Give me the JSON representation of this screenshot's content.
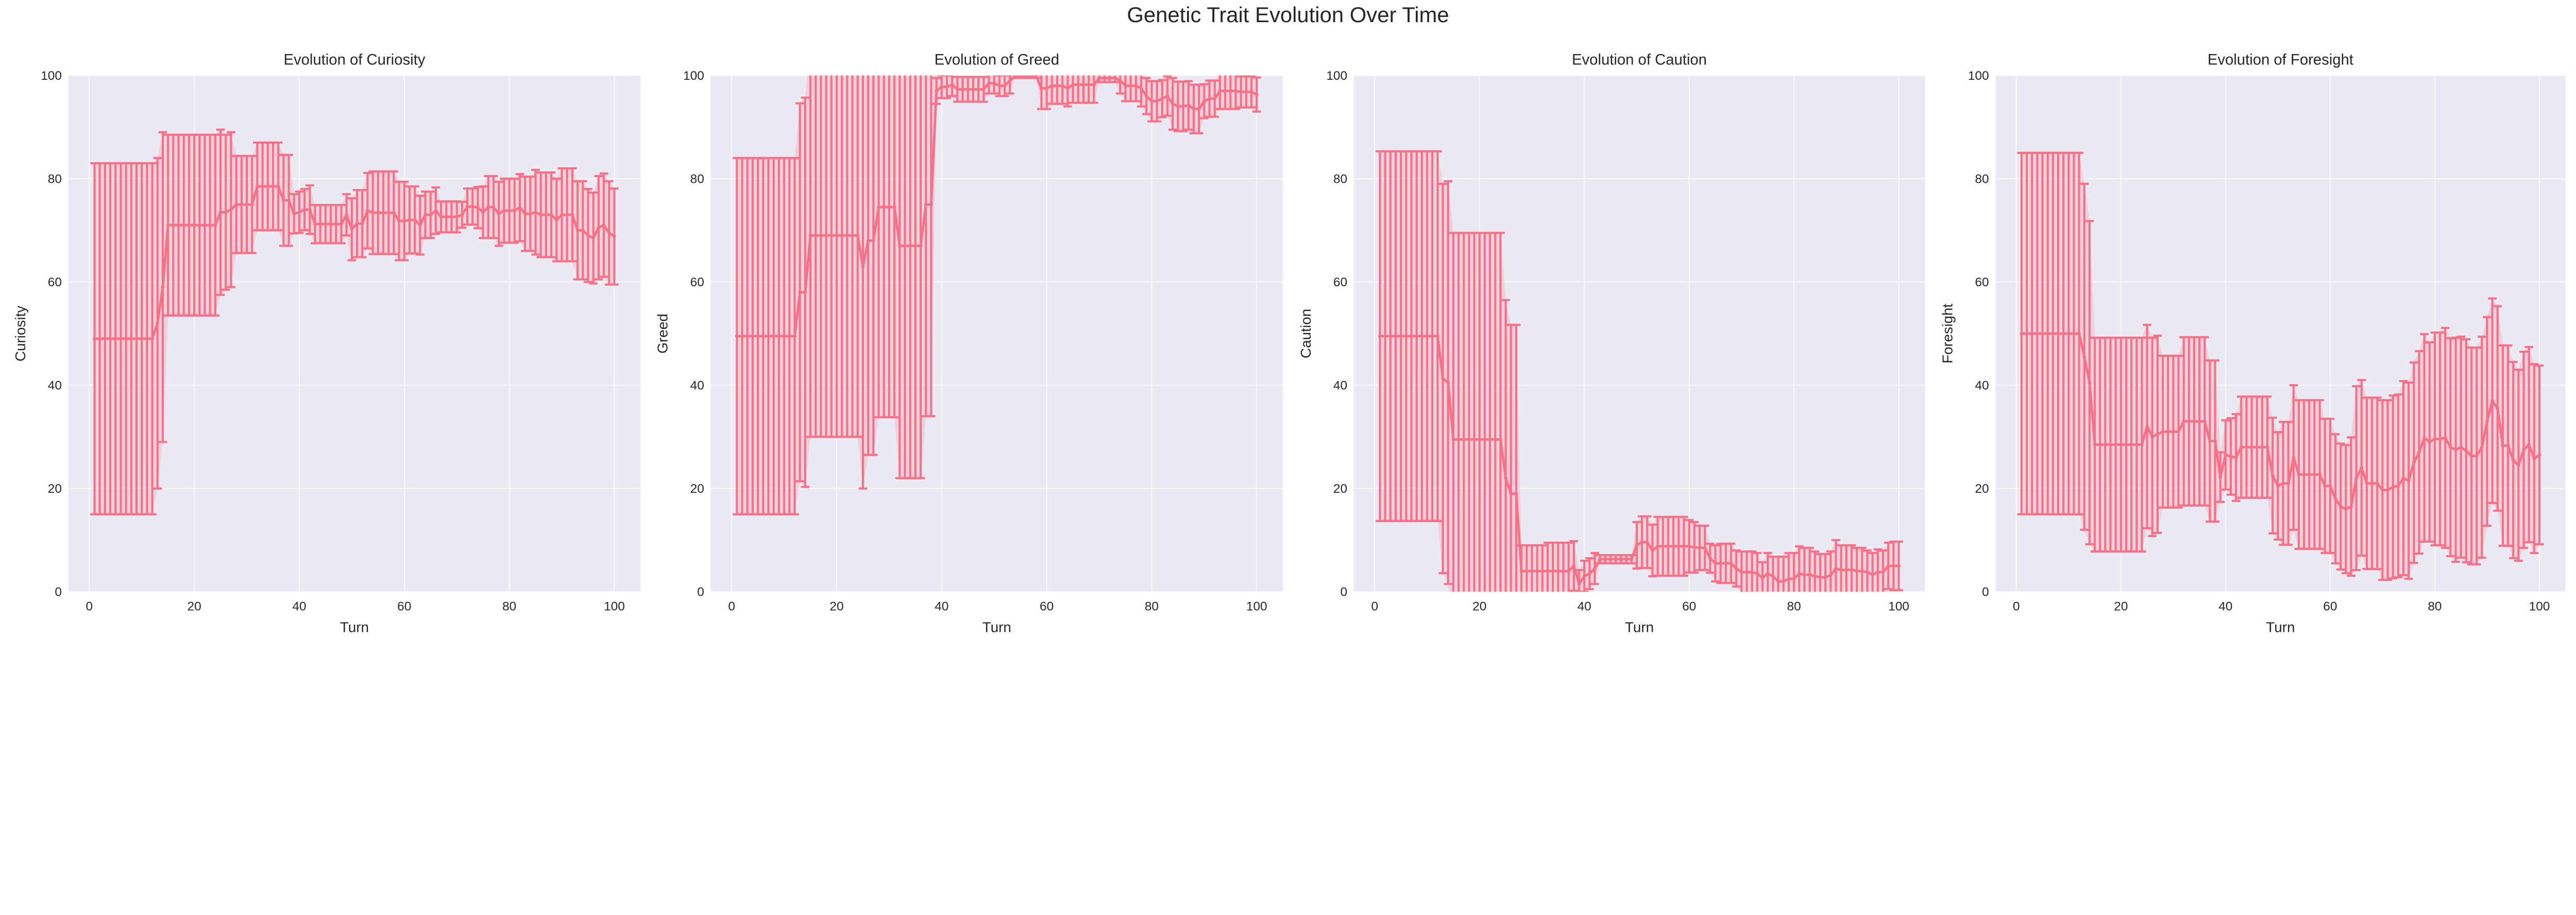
{
  "chart_data": {
    "title": "Genetic Trait Evolution Over Time",
    "colors": {
      "series": "#f77189",
      "band": "#f77189",
      "axes_background": "#eaeaf2",
      "grid": "#ffffff"
    },
    "panels": [
      {
        "type": "line",
        "title": "Evolution of Curiosity",
        "xlabel": "Turn",
        "ylabel": "Curiosity",
        "xlim": [
          -4,
          105
        ],
        "ylim": [
          0,
          100
        ],
        "xticks": [
          0,
          20,
          40,
          60,
          80,
          100
        ],
        "yticks": [
          0,
          20,
          40,
          60,
          80,
          100
        ],
        "grid": true,
        "error_bars": "std",
        "x_start": 1,
        "mean": [
          49,
          49,
          49,
          49,
          49,
          49,
          49,
          49,
          49,
          49,
          49,
          49,
          52,
          59,
          71,
          71,
          71,
          71,
          71,
          71,
          71,
          71,
          71,
          71,
          73.5,
          73.5,
          74,
          75,
          75,
          75,
          75,
          78.5,
          78.5,
          78.5,
          78.5,
          78.5,
          75.8,
          75.8,
          73.2,
          73.5,
          74,
          74,
          71.2,
          71.2,
          71.2,
          71.2,
          71.2,
          71.2,
          73,
          70.2,
          71.3,
          71.3,
          73.8,
          73.4,
          73.4,
          73.4,
          73.4,
          73.4,
          71.8,
          71.8,
          72,
          72,
          71,
          73,
          73,
          73.8,
          72.6,
          72.6,
          72.6,
          72.6,
          73,
          74.6,
          74.6,
          74.4,
          73.5,
          74.5,
          74.5,
          73.2,
          73.8,
          73.8,
          73.8,
          74.4,
          73.2,
          73.2,
          73.5,
          73,
          73,
          73,
          72,
          73,
          73,
          73,
          70,
          70,
          69,
          68.5,
          70.5,
          71,
          69.5,
          68.8
        ],
        "std": [
          34,
          34,
          34,
          34,
          34,
          34,
          34,
          34,
          34,
          34,
          34,
          34,
          32,
          30,
          17.5,
          17.5,
          17.5,
          17.5,
          17.5,
          17.5,
          17.5,
          17.5,
          17.5,
          17.5,
          16,
          15,
          15,
          9.4,
          9.4,
          9.4,
          9.4,
          8.5,
          8.5,
          8.5,
          8.5,
          8.5,
          8.8,
          8.8,
          3.8,
          4,
          4,
          4.7,
          3.7,
          3.7,
          3.7,
          3.7,
          3.7,
          3.7,
          4,
          6,
          6.5,
          6.5,
          7.3,
          8,
          8,
          8,
          8,
          8,
          7.6,
          7.6,
          6.5,
          6.5,
          5.7,
          4.5,
          4.5,
          4.5,
          3,
          3,
          3,
          3,
          2.5,
          3.5,
          3.5,
          4,
          5,
          6,
          6,
          6.2,
          6.2,
          6.2,
          6.2,
          6.5,
          7.2,
          7.2,
          8.2,
          8.2,
          8.2,
          8.2,
          8,
          9,
          9,
          9,
          9.5,
          9.5,
          9,
          8.8,
          10,
          10,
          10,
          9.3
        ]
      },
      {
        "type": "line",
        "title": "Evolution of Greed",
        "xlabel": "Turn",
        "ylabel": "Greed",
        "xlim": [
          -4,
          105
        ],
        "ylim": [
          0,
          100
        ],
        "xticks": [
          0,
          20,
          40,
          60,
          80,
          100
        ],
        "yticks": [
          0,
          20,
          40,
          60,
          80,
          100
        ],
        "grid": true,
        "error_bars": "std",
        "x_start": 1,
        "mean": [
          49.5,
          49.5,
          49.5,
          49.5,
          49.5,
          49.5,
          49.5,
          49.5,
          49.5,
          49.5,
          49.5,
          49.5,
          58,
          58,
          69,
          69,
          69,
          69,
          69,
          69,
          69,
          69,
          69,
          69,
          63,
          68,
          68,
          74.5,
          74.5,
          74.5,
          74.5,
          67,
          67,
          67,
          67,
          67,
          75,
          75,
          97,
          97.8,
          97.8,
          98.2,
          97.3,
          97.3,
          97.3,
          97.3,
          97.3,
          97.3,
          98.5,
          98.5,
          98,
          98,
          99,
          99.8,
          99.8,
          99.8,
          99.8,
          99.8,
          97.5,
          97.5,
          98,
          98,
          98,
          97.5,
          98.2,
          98.2,
          98.2,
          98.2,
          98.2,
          99.5,
          99.5,
          99.5,
          99.5,
          99,
          98,
          98,
          98,
          97.5,
          96,
          95,
          95,
          95.5,
          96,
          94.5,
          94,
          94,
          94.2,
          93.5,
          93.5,
          95,
          95.5,
          95.5,
          97,
          97,
          97,
          97,
          96.8,
          96.8,
          96.8,
          96.3
        ],
        "std": [
          34.5,
          34.5,
          34.5,
          34.5,
          34.5,
          34.5,
          34.5,
          34.5,
          34.5,
          34.5,
          34.5,
          34.5,
          36.6,
          37.7,
          39,
          39,
          39,
          39,
          39,
          39,
          39,
          39,
          39,
          39,
          43,
          41.5,
          41.5,
          40.7,
          40.7,
          40.7,
          40.7,
          45,
          45,
          45,
          45,
          45,
          41,
          41,
          2.5,
          2.2,
          2.2,
          2.2,
          2.4,
          2.4,
          2.4,
          2.4,
          2.4,
          2.4,
          2,
          2,
          2,
          2,
          2.5,
          0.3,
          0.3,
          0.3,
          0.3,
          0.3,
          4,
          4,
          3.5,
          3.5,
          3.5,
          3.5,
          3.5,
          3.5,
          3.5,
          3.5,
          3.5,
          0.8,
          0.8,
          0.8,
          0.8,
          2.5,
          3,
          3,
          3,
          3.5,
          3.5,
          3.9,
          3.9,
          3.6,
          3.8,
          5,
          4.8,
          4.8,
          4.7,
          4.7,
          4.7,
          3.3,
          3.5,
          3.5,
          3.5,
          3.5,
          3.5,
          3.5,
          3,
          3,
          3,
          3.3
        ]
      },
      {
        "type": "line",
        "title": "Evolution of Caution",
        "xlabel": "Turn",
        "ylabel": "Caution",
        "xlim": [
          -4,
          105
        ],
        "ylim": [
          0,
          100
        ],
        "xticks": [
          0,
          20,
          40,
          60,
          80,
          100
        ],
        "yticks": [
          0,
          20,
          40,
          60,
          80,
          100
        ],
        "grid": true,
        "error_bars": "std",
        "x_start": 1,
        "mean": [
          49.5,
          49.5,
          49.5,
          49.5,
          49.5,
          49.5,
          49.5,
          49.5,
          49.5,
          49.5,
          49.5,
          49.5,
          41.3,
          40.5,
          29.5,
          29.5,
          29.5,
          29.5,
          29.5,
          29.5,
          29.5,
          29.5,
          29.5,
          29.5,
          22,
          19,
          19,
          4,
          4,
          4,
          4,
          4,
          4,
          4,
          4,
          4,
          4,
          5,
          1.5,
          3,
          3.5,
          4.5,
          6.3,
          6.3,
          6.3,
          6.3,
          6.3,
          6.3,
          6.3,
          9,
          9.6,
          9.6,
          8,
          8.8,
          8.8,
          8.8,
          8.8,
          8.8,
          8.8,
          8.8,
          8.6,
          8.5,
          8.5,
          6.5,
          5.5,
          5.5,
          5.5,
          5.5,
          4.5,
          3.8,
          3.8,
          3.8,
          3.5,
          2.7,
          3.5,
          3,
          2,
          2,
          2.5,
          2.5,
          3.5,
          3.3,
          3.3,
          3,
          2.8,
          2.8,
          3.2,
          4.5,
          4.2,
          4.2,
          4.3,
          4,
          4,
          3.8,
          3.3,
          3.8,
          3.8,
          5,
          5,
          5
        ],
        "std": [
          35.8,
          35.8,
          35.8,
          35.8,
          35.8,
          35.8,
          35.8,
          35.8,
          35.8,
          35.8,
          35.8,
          35.8,
          37.7,
          39,
          40,
          40,
          40,
          40,
          40,
          40,
          40,
          40,
          40,
          40,
          34.5,
          32.7,
          32.7,
          5,
          5,
          5,
          5,
          5,
          5.5,
          5.5,
          5.5,
          5.5,
          5.5,
          4.8,
          2.7,
          3,
          3,
          3,
          0.8,
          0.8,
          0.8,
          0.8,
          0.8,
          0.8,
          0.8,
          4.5,
          5,
          5,
          5,
          5.7,
          5.7,
          5.7,
          5.7,
          5.7,
          5.7,
          5.1,
          4.9,
          4.3,
          4.3,
          2.8,
          3.5,
          3.8,
          3.8,
          3.8,
          3.5,
          4,
          4,
          4,
          4,
          3,
          4,
          3.8,
          4.8,
          4.8,
          5,
          5,
          5.3,
          5.2,
          5.2,
          4.8,
          4.5,
          4.5,
          4.6,
          5.5,
          4.8,
          4.8,
          4.7,
          4.5,
          4.5,
          4.2,
          4.2,
          4.4,
          4.2,
          4.5,
          4.7,
          4.7
        ]
      },
      {
        "type": "line",
        "title": "Evolution of Foresight",
        "xlabel": "Turn",
        "ylabel": "Foresight",
        "xlim": [
          -4,
          105
        ],
        "ylim": [
          0,
          100
        ],
        "xticks": [
          0,
          20,
          40,
          60,
          80,
          100
        ],
        "yticks": [
          0,
          20,
          40,
          60,
          80,
          100
        ],
        "grid": true,
        "error_bars": "std",
        "x_start": 1,
        "mean": [
          50,
          50,
          50,
          50,
          50,
          50,
          50,
          50,
          50,
          50,
          50,
          50,
          45.5,
          40.5,
          28.5,
          28.5,
          28.5,
          28.5,
          28.5,
          28.5,
          28.5,
          28.5,
          28.5,
          28.5,
          32,
          30,
          30.5,
          31,
          31,
          31,
          31,
          33,
          33,
          33,
          33,
          33,
          29.2,
          29.2,
          22.2,
          26.5,
          26.2,
          26,
          28,
          28,
          28,
          28,
          28,
          28,
          22.5,
          20.5,
          21,
          21,
          26,
          22.7,
          22.7,
          22.7,
          22.7,
          22.7,
          20.5,
          20.5,
          18,
          16.5,
          16,
          16.5,
          22,
          24,
          21,
          21,
          21,
          19.7,
          19.7,
          20.3,
          20.5,
          22,
          21.5,
          25,
          27,
          29.8,
          29,
          29.6,
          29.6,
          29.8,
          28,
          27.5,
          28,
          27.3,
          26.3,
          26.3,
          28,
          33,
          37,
          35.5,
          28.3,
          28.3,
          25.5,
          24.5,
          27.5,
          28.5,
          25.8,
          26.5
        ],
        "std": [
          35,
          35,
          35,
          35,
          35,
          35,
          35,
          35,
          35,
          35,
          35,
          35,
          33.5,
          31.3,
          20.7,
          20.7,
          20.7,
          20.7,
          20.7,
          20.7,
          20.7,
          20.7,
          20.7,
          20.7,
          19.7,
          19.2,
          19.1,
          14.7,
          14.7,
          14.7,
          14.7,
          16.3,
          16.3,
          16.3,
          16.3,
          16.3,
          15.6,
          15.6,
          4.8,
          6.7,
          7.4,
          8.4,
          9.8,
          9.8,
          9.8,
          9.8,
          9.8,
          9.8,
          11.2,
          10.4,
          11.9,
          11.9,
          14,
          14.4,
          14.4,
          14.4,
          14.4,
          14.4,
          13,
          13,
          12.5,
          12.2,
          12.4,
          13.4,
          17.8,
          17,
          16.6,
          16.6,
          16.6,
          17.4,
          17.4,
          17.7,
          17.7,
          18.8,
          19,
          19.4,
          19.6,
          20.1,
          19.3,
          20.6,
          20.6,
          21.3,
          21.1,
          21.7,
          21.4,
          21.6,
          21,
          21,
          21.4,
          20.2,
          19.8,
          19.8,
          19.4,
          19.4,
          19,
          18.5,
          19,
          18.9,
          18.3,
          17.3
        ]
      }
    ]
  }
}
